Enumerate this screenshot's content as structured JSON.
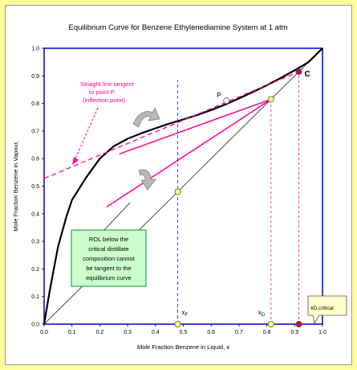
{
  "chart_data": {
    "type": "line",
    "title": "Equilibrium Curve for Benzene Ethylenediamine System at 1 atm",
    "xlabel": "Mole Fraction Benzene in Liquid, x",
    "ylabel": "Mole Fraction Benzene in Vapour,",
    "xlim": [
      0,
      1
    ],
    "ylim": [
      0,
      1
    ],
    "xticks": [
      "0.0",
      "0.1",
      "0.2",
      "0.3",
      "0.4",
      "0.5",
      "0.6",
      "0.7",
      "0.8",
      "0.9",
      "1.0"
    ],
    "yticks": [
      "0.0",
      "0.1",
      "0.2",
      "0.3",
      "0.4",
      "0.5",
      "0.6",
      "0.7",
      "0.8",
      "0.9",
      "1.0"
    ],
    "grid": false,
    "series": [
      {
        "role": "equilibrium curve",
        "color": "#000000",
        "x": [
          0.0,
          0.02,
          0.05,
          0.08,
          0.1,
          0.15,
          0.2,
          0.25,
          0.3,
          0.35,
          0.4,
          0.45,
          0.5,
          0.55,
          0.6,
          0.65,
          0.7,
          0.75,
          0.8,
          0.85,
          0.9,
          0.95,
          1.0
        ],
        "y": [
          0.0,
          0.12,
          0.28,
          0.39,
          0.45,
          0.53,
          0.6,
          0.645,
          0.672,
          0.692,
          0.71,
          0.727,
          0.742,
          0.758,
          0.776,
          0.796,
          0.818,
          0.842,
          0.866,
          0.892,
          0.92,
          0.95,
          1.0
        ]
      },
      {
        "role": "diagonal y=x",
        "color": "#000000",
        "x": [
          0,
          1
        ],
        "y": [
          0,
          1
        ]
      },
      {
        "role": "tangent line at P",
        "color": "#ff0099",
        "dashed": true,
        "x": [
          0.0,
          0.915
        ],
        "y": [
          0.528,
          0.915
        ]
      },
      {
        "role": "operating line (upper)",
        "color": "#ff0099",
        "x": [
          0.27,
          0.815
        ],
        "y": [
          0.617,
          0.815
        ]
      },
      {
        "role": "operating line (lower)",
        "color": "#ff0099",
        "x": [
          0.225,
          0.815
        ],
        "y": [
          0.425,
          0.815
        ]
      },
      {
        "role": "x_F vertical",
        "color": "#003399",
        "dashed": true,
        "x": [
          0.48,
          0.48
        ],
        "y": [
          0,
          0.885
        ]
      },
      {
        "role": "x_D vertical",
        "color": "#ff0099",
        "dashed": true,
        "x": [
          0.815,
          0.815
        ],
        "y": [
          0,
          0.815
        ]
      },
      {
        "role": "x_D,critical vertical",
        "color": "#ff0099",
        "dashed": true,
        "x": [
          0.915,
          0.915
        ],
        "y": [
          0,
          0.915
        ]
      }
    ],
    "points": [
      {
        "label": "P",
        "x": 0.655,
        "y": 0.81,
        "fill": "#ffffff"
      },
      {
        "label": "C",
        "x": 0.915,
        "y": 0.915,
        "fill": "#cc0044"
      },
      {
        "label": "",
        "x": 0.815,
        "y": 0.815,
        "fill": "#ffff66"
      },
      {
        "label": "",
        "x": 0.48,
        "y": 0.48,
        "fill": "#ffff66"
      },
      {
        "label": "",
        "x": 0.48,
        "y": 0.0,
        "fill": "#ffff66"
      },
      {
        "label": "",
        "x": 0.815,
        "y": 0.0,
        "fill": "#ffff66"
      },
      {
        "label": "",
        "x": 0.915,
        "y": 0.0,
        "fill": "#cc0044"
      }
    ],
    "annotations": {
      "tangent_note": [
        "Straight line tangent",
        "to point P",
        "(inflection point)"
      ],
      "rol_note": [
        "ROL below the",
        "critical distillate",
        "composition cannot",
        "be tangent to the",
        "equilibrium curve"
      ],
      "label_P": "P",
      "label_C": "C",
      "label_xF": "xF",
      "label_xD": "xD",
      "label_xDcrit_main": "xD,critical"
    },
    "colors": {
      "background": "#ffff99",
      "pink": "#ff0099",
      "blue": "#003399",
      "note_fill": "#ccffcc",
      "note_border": "#009933",
      "callout_fill": "#ffffcc"
    }
  }
}
